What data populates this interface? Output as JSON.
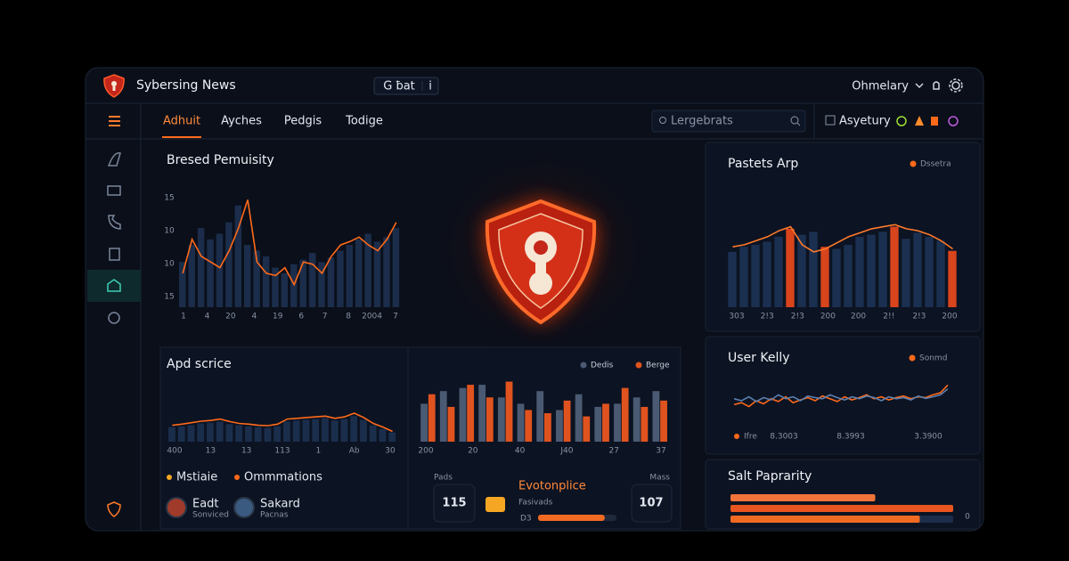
{
  "header": {
    "title": "Sybersing News",
    "pill": "G ƀat",
    "pill_extra": "i",
    "user": "Ohmelary"
  },
  "nav": {
    "tabs": [
      "Adhuit",
      "Ayches",
      "Pedgis",
      "Todige"
    ],
    "active": 0,
    "search": "Lergebrats",
    "account": "Asyetury"
  },
  "pressure": {
    "title": "Bresed Pemuisity",
    "y_labels": [
      "15",
      "10",
      "10",
      "15"
    ],
    "x_labels": [
      "1",
      "4",
      "20",
      "4",
      "19",
      "6",
      "7",
      "8",
      "2004",
      "7"
    ],
    "ylim": [
      0,
      100
    ],
    "series": [
      {
        "type": "bar",
        "color": "#1b2d4a",
        "values": [
          40,
          55,
          70,
          60,
          65,
          75,
          90,
          55,
          50,
          45,
          35,
          30,
          38,
          42,
          48,
          40,
          44,
          50,
          55,
          60,
          65,
          58,
          62,
          70
        ]
      },
      {
        "type": "line",
        "color": "#ff6a1a",
        "values": [
          30,
          60,
          45,
          40,
          35,
          50,
          70,
          95,
          40,
          30,
          28,
          35,
          20,
          40,
          38,
          30,
          45,
          55,
          58,
          62,
          55,
          50,
          60,
          75
        ]
      }
    ]
  },
  "pastets": {
    "title": "Pastets Arp",
    "legend": "Dssetra",
    "legend_color": "#ff6a1a",
    "x_labels": [
      "303",
      "2!3",
      "2!3",
      "200",
      "200",
      "2!!",
      "2!3",
      "200"
    ],
    "ylim": [
      0,
      100
    ],
    "series": [
      {
        "type": "bar",
        "color": "#1b3050",
        "values": [
          55,
          60,
          62,
          65,
          70,
          null,
          72,
          75,
          null,
          58,
          62,
          70,
          72,
          75,
          null,
          68,
          74,
          70,
          66,
          null
        ]
      },
      {
        "type": "bar",
        "color": "#d8441c",
        "values": [
          null,
          null,
          null,
          null,
          null,
          78,
          null,
          null,
          60,
          null,
          null,
          null,
          null,
          null,
          80,
          null,
          null,
          null,
          null,
          56
        ]
      },
      {
        "type": "line",
        "color": "#ff7a2a",
        "values": [
          60,
          62,
          66,
          70,
          76,
          80,
          62,
          55,
          58,
          64,
          70,
          74,
          78,
          80,
          82,
          78,
          76,
          72,
          66,
          58
        ]
      }
    ]
  },
  "apd": {
    "title": "Apd scrice",
    "x_labels": [
      "400",
      "13",
      "13",
      "113",
      "1",
      "Ab",
      "30"
    ],
    "ylim": [
      0,
      100
    ],
    "series": [
      {
        "type": "bar",
        "color": "#1a2e4c",
        "values": [
          40,
          42,
          45,
          50,
          52,
          55,
          48,
          45,
          42,
          40,
          38,
          42,
          55,
          58,
          60,
          62,
          65,
          58,
          62,
          70,
          60,
          45,
          35,
          25
        ]
      },
      {
        "type": "line",
        "color": "#ff6a1a",
        "values": [
          45,
          48,
          52,
          56,
          58,
          62,
          55,
          50,
          48,
          45,
          44,
          48,
          62,
          64,
          66,
          68,
          70,
          64,
          68,
          78,
          66,
          50,
          40,
          28
        ]
      }
    ],
    "legend": [
      {
        "name": "Mstiaie",
        "color": "#f5a623"
      },
      {
        "name": "Ommmations",
        "color": "#ff6a1a"
      }
    ],
    "people": [
      {
        "name": "Eadt",
        "sub": "Sonviced"
      },
      {
        "name": "Sakard",
        "sub": "Pacnas"
      }
    ]
  },
  "middle": {
    "grouped": true,
    "x_labels": [
      "200",
      "20",
      "40",
      "J40",
      "27",
      "37"
    ],
    "ylim": [
      0,
      100
    ],
    "series": [
      {
        "name": "Dedis",
        "type": "bar",
        "color": "#4a5a72",
        "values": [
          60,
          80,
          85,
          90,
          70,
          60,
          80,
          50,
          75,
          55,
          60,
          70,
          80
        ]
      },
      {
        "name": "Berge",
        "type": "bar",
        "color": "#e0531f",
        "values": [
          75,
          55,
          90,
          70,
          95,
          50,
          45,
          65,
          40,
          60,
          85,
          55,
          65
        ]
      }
    ],
    "left_caption": "Pads",
    "left_value": 115,
    "feature": "Evotonplice",
    "feature_sub": "Fasivads",
    "bar_label": "D3",
    "bar_value": 85,
    "bar_lim": [
      0,
      100
    ],
    "right_caption": "Mass",
    "right_value": 107
  },
  "user": {
    "title": "User Kelly",
    "legend": "Sonmd",
    "legend_color": "#ff6a1a",
    "x_labels": [
      "Ifre",
      "8.3003",
      "8.3993",
      "3.3900"
    ],
    "ylim": [
      0,
      100
    ],
    "series": [
      {
        "type": "line",
        "color": "#ff6a1a",
        "values": [
          40,
          45,
          35,
          50,
          42,
          55,
          48,
          60,
          45,
          52,
          58,
          50,
          62,
          55,
          48,
          60,
          52,
          58,
          65,
          55,
          60,
          52,
          58,
          62,
          55,
          60,
          58,
          65,
          70,
          90
        ]
      },
      {
        "type": "line",
        "color": "#5a7fb0",
        "values": [
          55,
          50,
          60,
          48,
          58,
          52,
          65,
          55,
          60,
          50,
          62,
          58,
          55,
          65,
          58,
          52,
          60,
          55,
          62,
          58,
          50,
          60,
          55,
          58,
          52,
          62,
          56,
          60,
          65,
          80
        ]
      }
    ]
  },
  "salt": {
    "title": "Salt Paprarity",
    "xlim": [
      0,
      100
    ],
    "end_label": "0",
    "bars": [
      {
        "value": 65,
        "color": "#f0743a"
      },
      {
        "value": 100,
        "color": "#e8551e"
      },
      {
        "value": 85,
        "color": "#f06a22"
      }
    ]
  }
}
